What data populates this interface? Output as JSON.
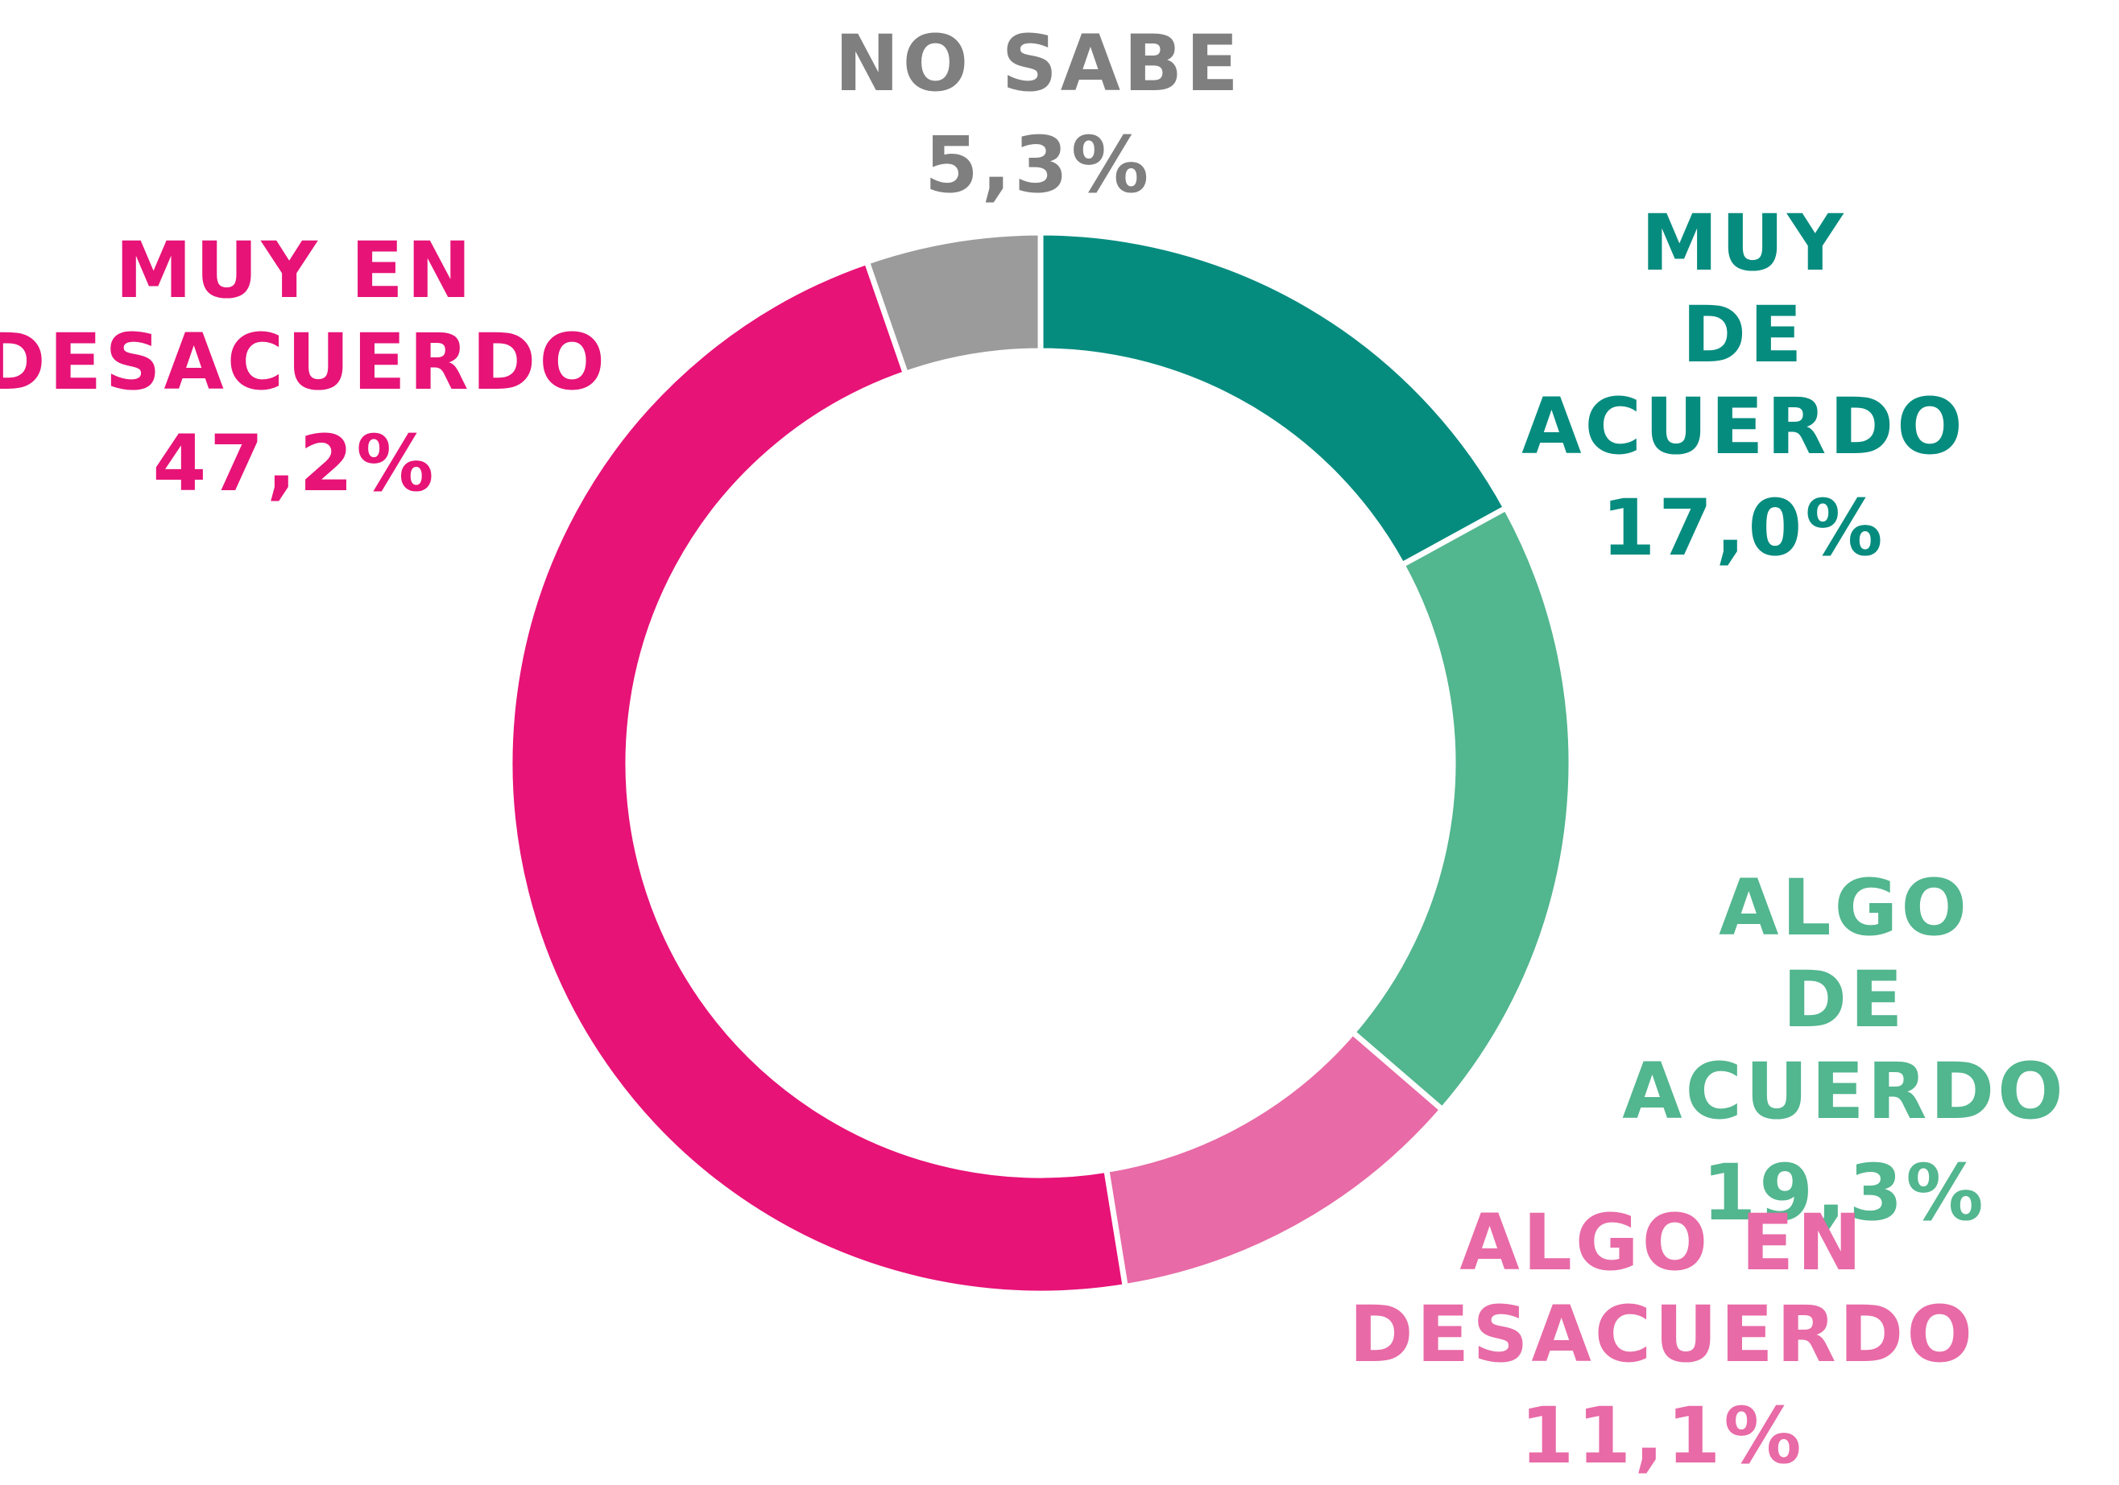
{
  "chart_data": {
    "type": "donut",
    "categories": [
      "MUY\nDE ACUERDO",
      "ALGO\nDE ACUERDO",
      "ALGO EN\nDESACUERDO",
      "MUY EN\nDESACUERDO",
      "NO SABE"
    ],
    "values": [
      17.0,
      19.3,
      11.1,
      47.2,
      5.3
    ],
    "value_labels": [
      "17,0%",
      "19,3%",
      "11,1%",
      "47,2%",
      "5,3%"
    ],
    "colors": [
      "#068c7f",
      "#52b68f",
      "#e86aa6",
      "#e71377",
      "#9b9b9b"
    ]
  }
}
